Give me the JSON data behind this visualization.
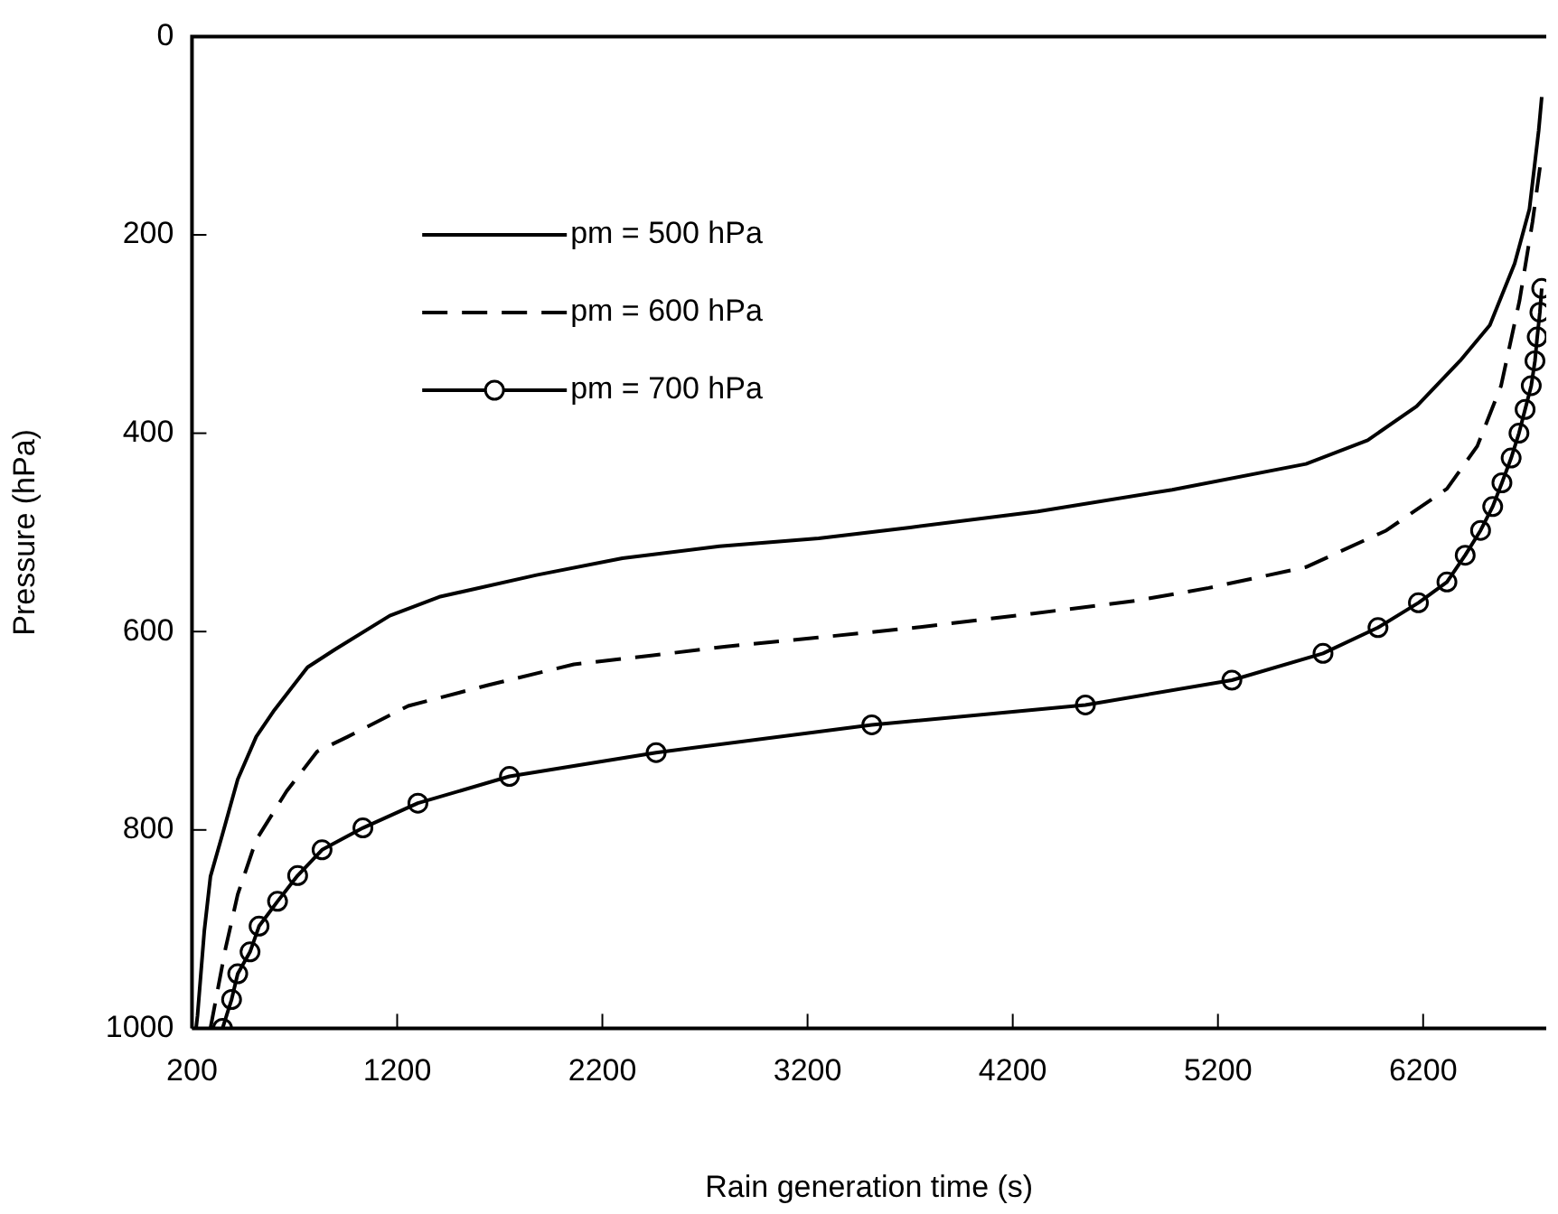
{
  "chart_data": {
    "type": "line",
    "xlabel": "Rain generation time (s)",
    "ylabel": "Pressure (hPa)",
    "xlim": [
      200,
      6800
    ],
    "xticks": [
      200,
      1200,
      2200,
      3200,
      4200,
      5200,
      6200
    ],
    "ylim": [
      1000,
      0
    ],
    "yticks": [
      0,
      200,
      400,
      600,
      800,
      1000
    ],
    "grid": false,
    "legend": "top left",
    "series": [
      {
        "name": "pm = 500 hPa",
        "color": "#000000",
        "line_style": "solid",
        "marker": "none",
        "x": [
          220,
          227,
          260,
          290,
          349,
          423,
          513,
          602,
          763,
          897,
          1164,
          1405,
          1879,
          2298,
          2771,
          3254,
          3700,
          4322,
          4977,
          5629,
          5930,
          6168,
          6380,
          6525,
          6646,
          6718,
          6763,
          6778
        ],
        "values": [
          1000,
          987,
          902,
          847,
          804,
          749,
          706,
          679,
          636,
          618,
          584,
          565,
          543,
          526,
          514,
          506,
          495,
          479,
          457,
          431,
          407,
          373,
          327,
          291,
          229,
          174,
          95,
          61
        ]
      },
      {
        "name": "pm = 600 hPa",
        "color": "#000000",
        "line_style": "dashed",
        "marker": "none",
        "x": [
          290,
          363,
          423,
          513,
          661,
          810,
          959,
          1254,
          1643,
          2061,
          2447,
          2804,
          3251,
          3727,
          4291,
          4798,
          5155,
          5629,
          6021,
          6316,
          6464,
          6580,
          6670,
          6733,
          6778
        ],
        "values": [
          1000,
          920,
          865,
          810,
          761,
          721,
          706,
          675,
          654,
          633,
          624,
          615,
          606,
          596,
          582,
          569,
          556,
          535,
          498,
          456,
          413,
          352,
          266,
          187,
          119
        ]
      },
      {
        "name": "pm = 700 hPa",
        "color": "#000000",
        "line_style": "solid",
        "marker": "circle",
        "x": [
          349,
          393,
          423,
          483,
          527,
          617,
          715,
          834,
          1033,
          1301,
          1747,
          2462,
          3513,
          4554,
          5268,
          5712,
          5980,
          6177,
          6316,
          6405,
          6480,
          6539,
          6584,
          6629,
          6667,
          6697,
          6727,
          6745,
          6756,
          6769,
          6778
        ],
        "values": [
          1000,
          971,
          945,
          923,
          897,
          872,
          846,
          820,
          798,
          773,
          746,
          722,
          694,
          674,
          649,
          622,
          596,
          571,
          550,
          523,
          498,
          474,
          450,
          425,
          400,
          376,
          352,
          327,
          303,
          278,
          254
        ]
      }
    ]
  }
}
